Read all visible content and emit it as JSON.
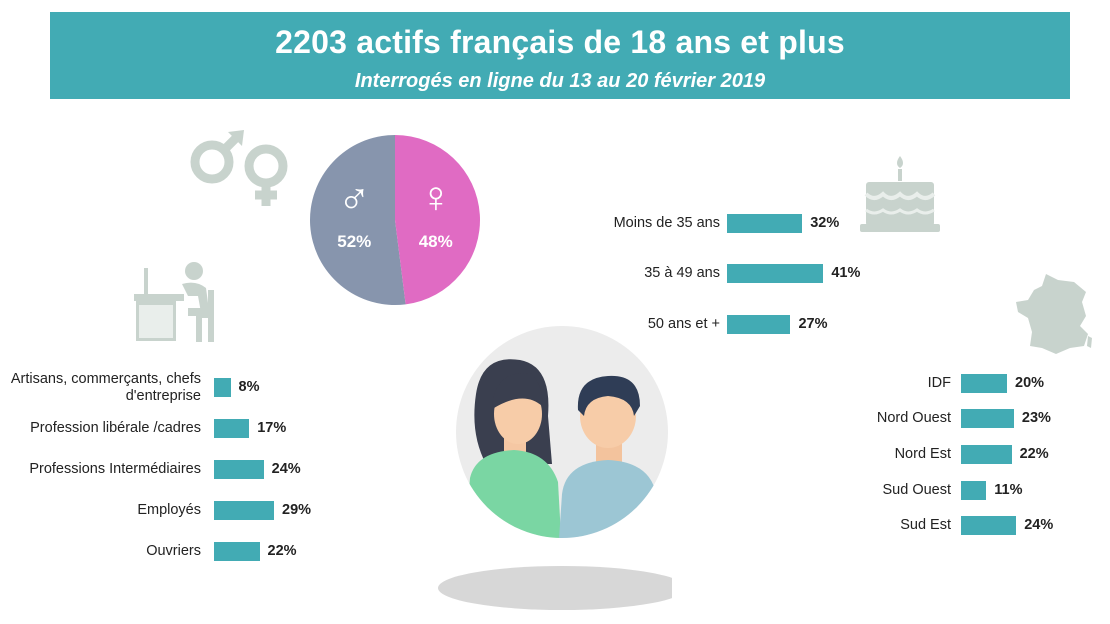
{
  "header": {
    "title": "2203 actifs français de 18 ans et plus",
    "subtitle": "Interrogés en ligne du 13 au 20 février 2019"
  },
  "colors": {
    "banner": "#42abb4",
    "bar": "#42abb4",
    "male": "#8795ad",
    "female": "#e06bc3",
    "icon_grey": "#c8d3cd"
  },
  "icons": [
    "gender-symbols-icon",
    "desk-worker-icon",
    "birthday-cake-icon",
    "france-map-icon",
    "couple-avatar-icon"
  ],
  "chart_data": [
    {
      "type": "pie",
      "labels": [
        "♂",
        "♀"
      ],
      "values": [
        52,
        48
      ],
      "value_labels": [
        "52%",
        "48%"
      ]
    },
    {
      "type": "bar",
      "orientation": "horizontal",
      "categories": [
        "Moins de 35 ans",
        "35 à 49 ans",
        "50 ans et +"
      ],
      "values": [
        32,
        41,
        27
      ],
      "value_labels": [
        "32%",
        "41%",
        "27%"
      ]
    },
    {
      "type": "bar",
      "orientation": "horizontal",
      "categories": [
        "Artisans, commerçants, chefs d'entreprise",
        "Profession libérale /cadres",
        "Professions Intermédiaires",
        "Employés",
        "Ouvriers"
      ],
      "values": [
        8,
        17,
        24,
        29,
        22
      ],
      "value_labels": [
        "8%",
        "17%",
        "24%",
        "29%",
        "22%"
      ]
    },
    {
      "type": "bar",
      "orientation": "horizontal",
      "categories": [
        "IDF",
        "Nord Ouest",
        "Nord Est",
        "Sud Ouest",
        "Sud Est"
      ],
      "values": [
        20,
        23,
        22,
        11,
        24
      ],
      "value_labels": [
        "20%",
        "23%",
        "22%",
        "11%",
        "24%"
      ]
    }
  ]
}
